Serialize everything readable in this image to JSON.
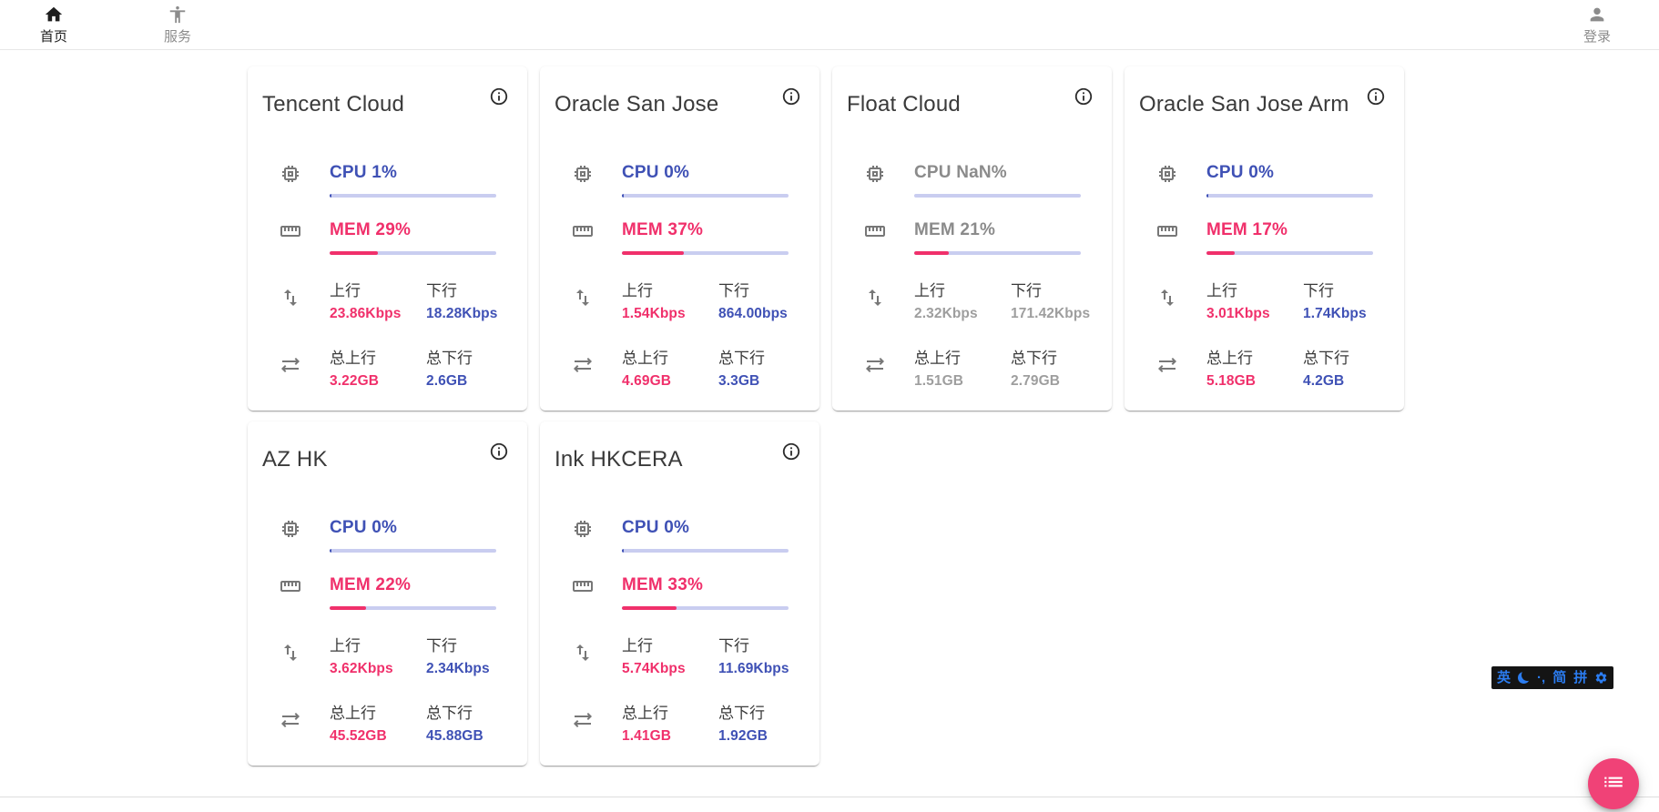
{
  "nav": {
    "home": "首页",
    "services": "服务",
    "login": "登录"
  },
  "labels": {
    "cpu": "CPU",
    "mem": "MEM",
    "up": "上行",
    "down": "下行",
    "total_up": "总上行",
    "total_down": "总下行"
  },
  "colors": {
    "accent_blue": "#3f51b5",
    "accent_pink": "#f0306b",
    "bar_track": "#c9cdf0",
    "offline_gray": "#9e9e9e",
    "fab_pink": "#f04277",
    "ime_blue": "#2b7cf0"
  },
  "servers": [
    {
      "name": "Tencent Cloud",
      "cpu": "1%",
      "cpu_pct": 1,
      "mem": "29%",
      "mem_pct": 29,
      "up": "23.86Kbps",
      "down": "18.28Kbps",
      "total_up": "3.22GB",
      "total_down": "2.6GB",
      "online": true
    },
    {
      "name": "Oracle San Jose",
      "cpu": "0%",
      "cpu_pct": 0,
      "mem": "37%",
      "mem_pct": 37,
      "up": "1.54Kbps",
      "down": "864.00bps",
      "total_up": "4.69GB",
      "total_down": "3.3GB",
      "online": true
    },
    {
      "name": "Float Cloud",
      "cpu": "NaN%",
      "cpu_pct": null,
      "mem": "21%",
      "mem_pct": 21,
      "up": "2.32Kbps",
      "down": "171.42Kbps",
      "total_up": "1.51GB",
      "total_down": "2.79GB",
      "online": false
    },
    {
      "name": "Oracle San Jose Arm",
      "cpu": "0%",
      "cpu_pct": 0,
      "mem": "17%",
      "mem_pct": 17,
      "up": "3.01Kbps",
      "down": "1.74Kbps",
      "total_up": "5.18GB",
      "total_down": "4.2GB",
      "online": true
    },
    {
      "name": "AZ HK",
      "cpu": "0%",
      "cpu_pct": 0,
      "mem": "22%",
      "mem_pct": 22,
      "up": "3.62Kbps",
      "down": "2.34Kbps",
      "total_up": "45.52GB",
      "total_down": "45.88GB",
      "online": true
    },
    {
      "name": "Ink HKCERA",
      "cpu": "0%",
      "cpu_pct": 0,
      "mem": "33%",
      "mem_pct": 33,
      "up": "5.74Kbps",
      "down": "11.69Kbps",
      "total_up": "1.41GB",
      "total_down": "1.92GB",
      "online": true
    }
  ],
  "ime": {
    "english": "英",
    "punct": "·,",
    "simplified": "简",
    "pinyin": "拼"
  }
}
